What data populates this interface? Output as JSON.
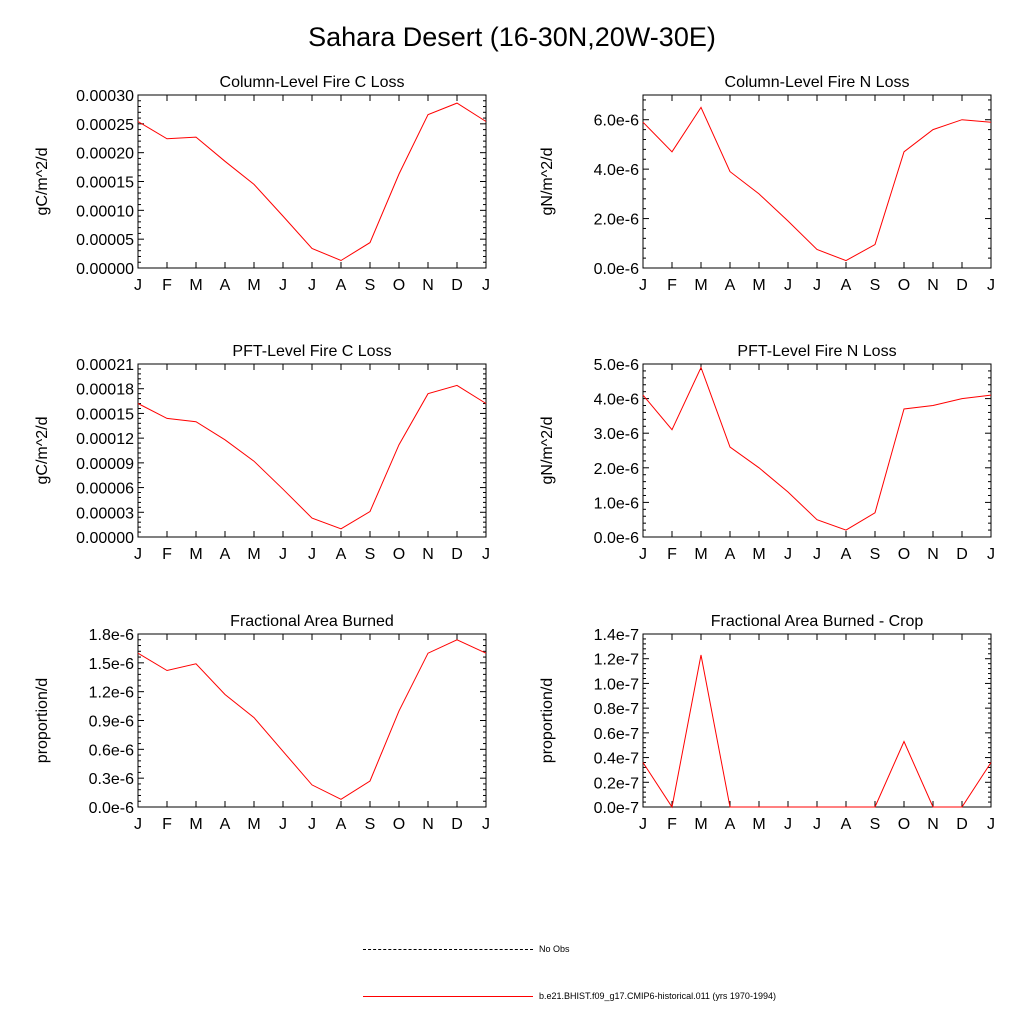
{
  "page_title": "Sahara Desert (16-30N,20W-30E)",
  "legend": {
    "entries": [
      {
        "label": "No Obs",
        "color": "#000000",
        "style": "dashed"
      },
      {
        "label": "b.e21.BHIST.f09_g17.CMIP6-historical.011 (yrs 1970-1994)",
        "color": "#ff0000",
        "style": "solid"
      }
    ]
  },
  "chart_data": [
    {
      "type": "line",
      "title": "Column-Level Fire C Loss",
      "ylabel": "gC/m^2/d",
      "categories": [
        "J",
        "F",
        "M",
        "A",
        "M",
        "J",
        "J",
        "A",
        "S",
        "O",
        "N",
        "D",
        "J"
      ],
      "ylim": [
        0,
        0.0003
      ],
      "yticks": [
        "0.00000",
        "0.00005",
        "0.00010",
        "0.00015",
        "0.00020",
        "0.00025",
        "0.00030"
      ],
      "series": [
        {
          "color": "#ff0000",
          "values": [
            0.000254,
            0.000224,
            0.000227,
            0.000185,
            0.000145,
            9e-05,
            3.4e-05,
            1.3e-05,
            4.4e-05,
            0.000163,
            0.000266,
            0.000286,
            0.000254
          ]
        }
      ]
    },
    {
      "type": "line",
      "title": "Column-Level Fire N Loss",
      "ylabel": "gN/m^2/d",
      "categories": [
        "J",
        "F",
        "M",
        "A",
        "M",
        "J",
        "J",
        "A",
        "S",
        "O",
        "N",
        "D",
        "J"
      ],
      "ylim": [
        0,
        7e-06
      ],
      "yticks": [
        "0.0e-6",
        "2.0e-6",
        "4.0e-6",
        "6.0e-6"
      ],
      "ytick_values": [
        0,
        2e-06,
        4e-06,
        6e-06
      ],
      "series": [
        {
          "color": "#ff0000",
          "values": [
            5.9e-06,
            4.7e-06,
            6.5e-06,
            3.9e-06,
            3e-06,
            1.9e-06,
            7.5e-07,
            3e-07,
            9.5e-07,
            4.7e-06,
            5.6e-06,
            6e-06,
            5.9e-06
          ]
        }
      ]
    },
    {
      "type": "line",
      "title": "PFT-Level Fire C Loss",
      "ylabel": "gC/m^2/d",
      "categories": [
        "J",
        "F",
        "M",
        "A",
        "M",
        "J",
        "J",
        "A",
        "S",
        "O",
        "N",
        "D",
        "J"
      ],
      "ylim": [
        0,
        0.00021
      ],
      "yticks": [
        "0.00000",
        "0.00003",
        "0.00006",
        "0.00009",
        "0.00012",
        "0.00015",
        "0.00018",
        "0.00021"
      ],
      "series": [
        {
          "color": "#ff0000",
          "values": [
            0.000162,
            0.000144,
            0.00014,
            0.000118,
            9.2e-05,
            5.8e-05,
            2.3e-05,
            1e-05,
            3.1e-05,
            0.000112,
            0.000174,
            0.000184,
            0.000162
          ]
        }
      ]
    },
    {
      "type": "line",
      "title": "PFT-Level Fire N Loss",
      "ylabel": "gN/m^2/d",
      "categories": [
        "J",
        "F",
        "M",
        "A",
        "M",
        "J",
        "J",
        "A",
        "S",
        "O",
        "N",
        "D",
        "J"
      ],
      "ylim": [
        0,
        5e-06
      ],
      "yticks": [
        "0.0e-6",
        "1.0e-6",
        "2.0e-6",
        "3.0e-6",
        "4.0e-6",
        "5.0e-6"
      ],
      "ytick_values": [
        0,
        1e-06,
        2e-06,
        3e-06,
        4e-06,
        5e-06
      ],
      "series": [
        {
          "color": "#ff0000",
          "values": [
            4.1e-06,
            3.1e-06,
            4.9e-06,
            2.6e-06,
            2e-06,
            1.3e-06,
            5e-07,
            2e-07,
            7e-07,
            3.7e-06,
            3.8e-06,
            4e-06,
            4.1e-06
          ]
        }
      ]
    },
    {
      "type": "line",
      "title": "Fractional Area Burned",
      "ylabel": "proportion/d",
      "categories": [
        "J",
        "F",
        "M",
        "A",
        "M",
        "J",
        "J",
        "A",
        "S",
        "O",
        "N",
        "D",
        "J"
      ],
      "ylim": [
        0,
        1.8e-06
      ],
      "yticks": [
        "0.0e-6",
        "0.3e-6",
        "0.6e-6",
        "0.9e-6",
        "1.2e-6",
        "1.5e-6",
        "1.8e-6"
      ],
      "ytick_values": [
        0,
        3e-07,
        6e-07,
        9e-07,
        1.2e-06,
        1.5e-06,
        1.8e-06
      ],
      "series": [
        {
          "color": "#ff0000",
          "values": [
            1.6e-06,
            1.42e-06,
            1.49e-06,
            1.17e-06,
            9.3e-07,
            5.8e-07,
            2.3e-07,
            8e-08,
            2.7e-07,
            1e-06,
            1.6e-06,
            1.74e-06,
            1.6e-06
          ]
        }
      ]
    },
    {
      "type": "line",
      "title": "Fractional Area Burned - Crop",
      "ylabel": "proportion/d",
      "categories": [
        "J",
        "F",
        "M",
        "A",
        "M",
        "J",
        "J",
        "A",
        "S",
        "O",
        "N",
        "D",
        "J"
      ],
      "ylim": [
        0,
        1.4e-07
      ],
      "yticks": [
        "0.0e-7",
        "0.2e-7",
        "0.4e-7",
        "0.6e-7",
        "0.8e-7",
        "1.0e-7",
        "1.2e-7",
        "1.4e-7"
      ],
      "ytick_values": [
        0,
        2e-08,
        4e-08,
        6e-08,
        8e-08,
        1e-07,
        1.2e-07,
        1.4e-07
      ],
      "series": [
        {
          "color": "#ff0000",
          "values": [
            3.6e-08,
            0,
            1.23e-07,
            0,
            0,
            0,
            0,
            0,
            0,
            5.3e-08,
            0,
            0,
            3.6e-08
          ]
        }
      ]
    }
  ]
}
